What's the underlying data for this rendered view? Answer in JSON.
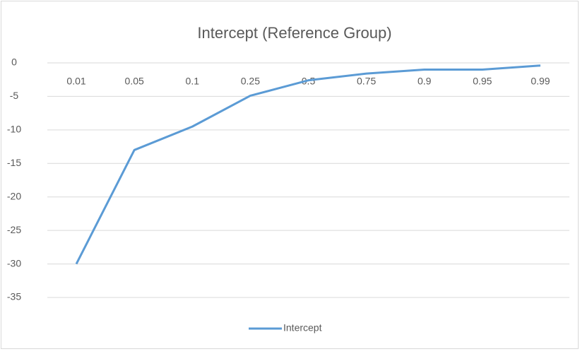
{
  "chart_data": {
    "type": "line",
    "title": "Intercept (Reference Group)",
    "categories": [
      "0.01",
      "0.05",
      "0.1",
      "0.25",
      "0.5",
      "0.75",
      "0.9",
      "0.95",
      "0.99"
    ],
    "series": [
      {
        "name": "Intercept",
        "color": "#5b9bd5",
        "values": [
          -30,
          -13,
          -9.5,
          -4.9,
          -2.6,
          -1.6,
          -1,
          -1,
          -0.4
        ]
      }
    ],
    "ylim": [
      -35,
      0
    ],
    "yticks": [
      0,
      -5,
      -10,
      -15,
      -20,
      -25,
      -30,
      -35
    ],
    "grid": true,
    "legend": "bottom"
  }
}
